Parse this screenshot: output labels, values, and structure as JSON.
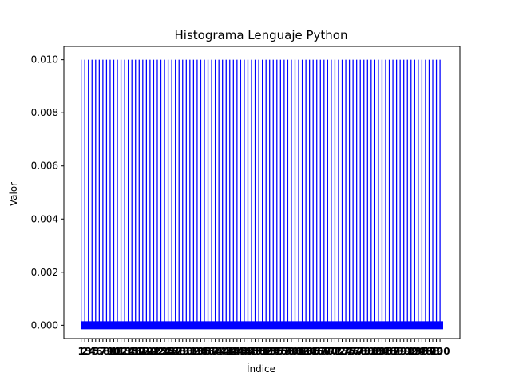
{
  "chart_data": {
    "type": "bar",
    "title": "Histograma Lenguaje Python",
    "xlabel": "Índice",
    "ylabel": "Valor",
    "ylim": [
      -0.0005,
      0.0105
    ],
    "yticks": [
      "0.000",
      "0.002",
      "0.004",
      "0.006",
      "0.008",
      "0.010"
    ],
    "ytick_values": [
      0,
      0.002,
      0.004,
      0.006,
      0.008,
      0.01
    ],
    "categories": [
      "1",
      "2",
      "3",
      "4",
      "5",
      "6",
      "7",
      "8",
      "9",
      "10",
      "11",
      "12",
      "13",
      "14",
      "15",
      "16",
      "17",
      "18",
      "19",
      "20",
      "21",
      "22",
      "23",
      "24",
      "25",
      "26",
      "27",
      "28",
      "29",
      "30",
      "31",
      "32",
      "33",
      "34",
      "35",
      "36",
      "37",
      "38",
      "39",
      "40",
      "41",
      "42",
      "43",
      "44",
      "45",
      "46",
      "47",
      "48",
      "49",
      "50",
      "51",
      "52",
      "53",
      "54",
      "55",
      "56",
      "57",
      "58",
      "59",
      "60",
      "61",
      "62",
      "63",
      "64",
      "65",
      "66",
      "67",
      "68",
      "69",
      "70",
      "71",
      "72",
      "73",
      "74",
      "75",
      "76",
      "77",
      "78",
      "79",
      "80",
      "81",
      "82",
      "83",
      "84",
      "85",
      "86",
      "87",
      "88",
      "89",
      "90",
      "91",
      "92",
      "93",
      "94",
      "95",
      "96",
      "97",
      "98",
      "99",
      "100"
    ],
    "values": [
      0.01,
      0.01,
      0.01,
      0.01,
      0.01,
      0.01,
      0.01,
      0.01,
      0.01,
      0.01,
      0.01,
      0.01,
      0.01,
      0.01,
      0.01,
      0.01,
      0.01,
      0.01,
      0.01,
      0.01,
      0.01,
      0.01,
      0.01,
      0.01,
      0.01,
      0.01,
      0.01,
      0.01,
      0.01,
      0.01,
      0.01,
      0.01,
      0.01,
      0.01,
      0.01,
      0.01,
      0.01,
      0.01,
      0.01,
      0.01,
      0.01,
      0.01,
      0.01,
      0.01,
      0.01,
      0.01,
      0.01,
      0.01,
      0.01,
      0.01,
      0.01,
      0.01,
      0.01,
      0.01,
      0.01,
      0.01,
      0.01,
      0.01,
      0.01,
      0.01,
      0.01,
      0.01,
      0.01,
      0.01,
      0.01,
      0.01,
      0.01,
      0.01,
      0.01,
      0.01,
      0.01,
      0.01,
      0.01,
      0.01,
      0.01,
      0.01,
      0.01,
      0.01,
      0.01,
      0.01,
      0.01,
      0.01,
      0.01,
      0.01,
      0.01,
      0.01,
      0.01,
      0.01,
      0.01,
      0.01,
      0.01,
      0.01,
      0.01,
      0.01,
      0.01,
      0.01,
      0.01,
      0.01,
      0.01,
      0.01
    ],
    "bar_color": "#0000ff",
    "grid": false
  }
}
